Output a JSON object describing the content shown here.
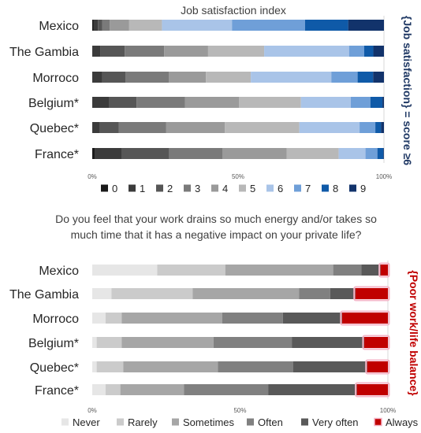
{
  "chart_data": [
    {
      "type": "bar",
      "orientation": "horizontal",
      "stacked": true,
      "normalized": true,
      "title": "Job satisfaction index",
      "side_label": "{Job satisfaction} = score ≥6",
      "side_label_color": "#1f3864",
      "categories": [
        "Mexico",
        "The Gambia",
        "Morroco",
        "Belgium*",
        "Quebec*",
        "France*"
      ],
      "xlim": [
        0,
        100
      ],
      "ticks": [
        "0%",
        "50%",
        "100%"
      ],
      "legend_position": "bottom",
      "series": [
        {
          "name": "0",
          "color": "#1a1a1a",
          "values": [
            0.4,
            0.2,
            0.2,
            0.2,
            0.2,
            0.8
          ]
        },
        {
          "name": "1",
          "color": "#3b3b3b",
          "values": [
            1.5,
            2.5,
            3.0,
            5.5,
            2.5,
            9.0
          ]
        },
        {
          "name": "2",
          "color": "#565656",
          "values": [
            1.5,
            8.0,
            7.5,
            9.0,
            6.5,
            16.0
          ]
        },
        {
          "name": "3",
          "color": "#7a7a7a",
          "values": [
            2.5,
            13.0,
            14.0,
            16.0,
            16.5,
            18.0
          ]
        },
        {
          "name": "4",
          "color": "#9a9a9a",
          "values": [
            6.5,
            14.5,
            12.0,
            18.0,
            20.5,
            21.5
          ]
        },
        {
          "name": "5",
          "color": "#b8b8b8",
          "values": [
            11.0,
            18.5,
            14.5,
            20.5,
            26.0,
            17.5
          ]
        },
        {
          "name": "6",
          "color": "#a9c4e8",
          "values": [
            23.5,
            28.0,
            26.0,
            16.5,
            21.0,
            9.0
          ]
        },
        {
          "name": "7",
          "color": "#6f9fd8",
          "values": [
            24.5,
            5.0,
            8.5,
            6.5,
            5.5,
            4.0
          ]
        },
        {
          "name": "8",
          "color": "#0f5aa8",
          "values": [
            14.5,
            3.0,
            5.0,
            4.0,
            2.0,
            2.0
          ]
        },
        {
          "name": "9",
          "color": "#12336b",
          "values": [
            12.0,
            3.5,
            3.5,
            0.5,
            1.0,
            0.2
          ]
        }
      ]
    },
    {
      "type": "bar",
      "orientation": "horizontal",
      "stacked": true,
      "normalized": true,
      "title": "Do you feel that your work drains so much energy and/or takes so much time that it has a negative impact on your private life?",
      "title_lines": [
        "Do you feel that your work drains so much energy and/or takes so",
        "much time that it has a negative impact on your private life?"
      ],
      "side_label": "{Poor work/life balance}",
      "side_label_color": "#c00000",
      "categories": [
        "Mexico",
        "The Gambia",
        "Morroco",
        "Belgium*",
        "Quebec*",
        "France*"
      ],
      "xlim": [
        0,
        100
      ],
      "ticks": [
        "0%",
        "50%",
        "100%"
      ],
      "legend_position": "bottom",
      "series": [
        {
          "name": "Never",
          "color": "#e6e6e6",
          "values": [
            22.0,
            6.5,
            4.5,
            1.5,
            1.5,
            4.5
          ]
        },
        {
          "name": "Rarely",
          "color": "#cbcbcb",
          "values": [
            23.0,
            27.5,
            5.5,
            8.5,
            9.0,
            5.0
          ]
        },
        {
          "name": "Sometimes",
          "color": "#a6a6a6",
          "values": [
            36.5,
            36.0,
            34.0,
            31.0,
            32.0,
            21.5
          ]
        },
        {
          "name": "Often",
          "color": "#808080",
          "values": [
            9.5,
            10.5,
            20.5,
            26.5,
            25.5,
            28.5
          ]
        },
        {
          "name": "Very often",
          "color": "#595959",
          "values": [
            6.5,
            8.5,
            20.0,
            24.5,
            25.0,
            30.0
          ]
        },
        {
          "name": "Always",
          "color": "#c00000",
          "values": [
            2.5,
            11.0,
            15.5,
            8.0,
            7.0,
            10.5
          ]
        }
      ]
    }
  ]
}
